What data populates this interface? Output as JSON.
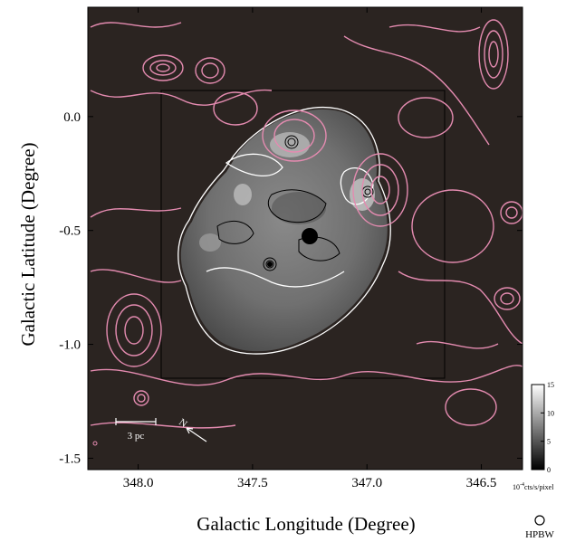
{
  "figure": {
    "xlabel": "Galactic Longitude (Degree)",
    "ylabel": "Galactic Latitude (Degree)",
    "x_ticks": [
      "348.0",
      "347.5",
      "347.0",
      "346.5"
    ],
    "y_ticks": [
      "0.0",
      "-0.5",
      "-1.0",
      "-1.5"
    ],
    "colorbar_ticks": [
      "0",
      "5",
      "10",
      "15"
    ],
    "colorbar_unit": "10^-4 cts/s/pixel",
    "colorbar_unit_base": "10",
    "colorbar_unit_exp": "-4",
    "colorbar_unit_rest": "cts/s/pixel",
    "scale_bar_label": "3 pc",
    "north_label": "N",
    "beam_label": "HPBW"
  },
  "chart_data": {
    "type": "heatmap",
    "xlabel": "Galactic Longitude (Degree)",
    "ylabel": "Galactic Latitude (Degree)",
    "x_ticks": [
      348.0,
      347.5,
      347.0,
      346.5
    ],
    "y_ticks": [
      0.0,
      -0.5,
      -1.0,
      -1.5
    ],
    "xlim": [
      348.22,
      346.32
    ],
    "ylim": [
      -1.55,
      0.48
    ],
    "colorbar": {
      "range": [
        0,
        15
      ],
      "ticks": [
        0,
        5,
        10,
        15
      ],
      "unit": "10^-4 cts/s/pixel"
    },
    "colors": {
      "background": "#2b2421",
      "xray_contour": "#ffffff",
      "inner_contour": "#000000",
      "radio_contour": "#e48bb0"
    }
  }
}
